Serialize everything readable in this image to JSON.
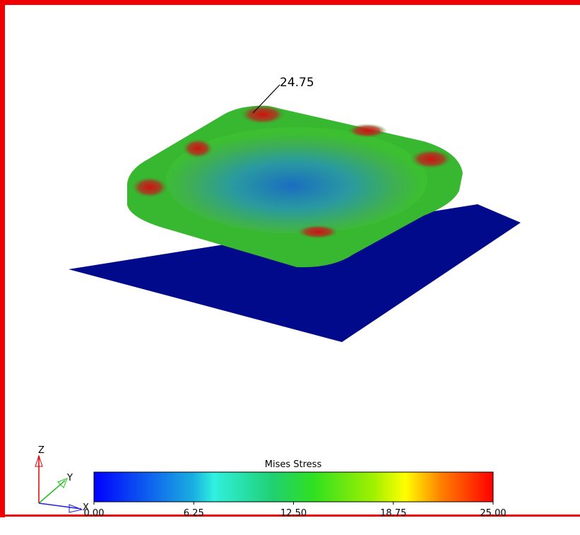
{
  "viewport": {
    "annotation": "24.75"
  },
  "colorbar": {
    "title": "Mises Stress",
    "ticks": [
      {
        "value": 0,
        "label": "0.00"
      },
      {
        "value": 6.25,
        "label": "6.25"
      },
      {
        "value": 12.5,
        "label": "12.50"
      },
      {
        "value": 18.75,
        "label": "18.75"
      },
      {
        "value": 25,
        "label": "25.00"
      }
    ]
  },
  "triad": {
    "z": "Z",
    "y": "Y",
    "x": "X"
  }
}
